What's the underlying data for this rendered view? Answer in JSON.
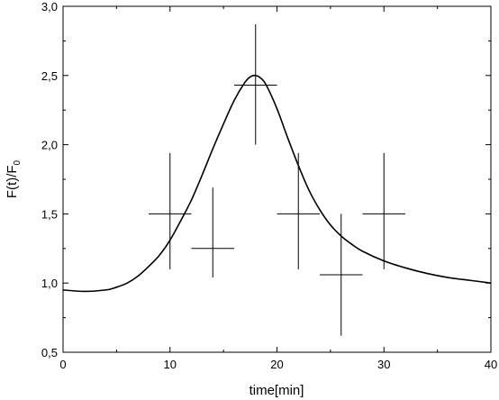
{
  "chart_data": {
    "type": "scatter",
    "xlabel": "time[min]",
    "ylabel_main": "F(t)/F",
    "ylabel_sub": "0",
    "xlim": [
      0,
      40
    ],
    "ylim": [
      0.5,
      3.0
    ],
    "x_ticks": [
      0,
      10,
      20,
      30,
      40
    ],
    "x_tick_labels": [
      "0",
      "10",
      "20",
      "30",
      "40"
    ],
    "y_ticks": [
      0.5,
      1.0,
      1.5,
      2.0,
      2.5,
      3.0
    ],
    "y_tick_labels": [
      "0,5",
      "1,0",
      "1,5",
      "2,0",
      "2,5",
      "3,0"
    ],
    "grid": false,
    "series": [
      {
        "kind": "errorbar",
        "points": [
          {
            "x": 10,
            "y": 1.5,
            "xerr": 2,
            "yerr": [
              0.4,
              0.44
            ]
          },
          {
            "x": 14,
            "y": 1.25,
            "xerr": 2,
            "yerr": [
              0.21,
              0.44
            ]
          },
          {
            "x": 18,
            "y": 2.43,
            "xerr": 2,
            "yerr": [
              0.43,
              0.44
            ]
          },
          {
            "x": 22,
            "y": 1.5,
            "xerr": 2,
            "yerr": [
              0.4,
              0.44
            ]
          },
          {
            "x": 26,
            "y": 1.06,
            "xerr": 2,
            "yerr": [
              0.44,
              0.44
            ]
          },
          {
            "x": 30,
            "y": 1.5,
            "xerr": 2,
            "yerr": [
              0.4,
              0.44
            ]
          }
        ]
      },
      {
        "kind": "line",
        "x": [
          0,
          2,
          4,
          5,
          6,
          7,
          8,
          9,
          10,
          11,
          12,
          13,
          14,
          15,
          16,
          17,
          17.5,
          18,
          18.5,
          19,
          20,
          21,
          22,
          23,
          24,
          25,
          26,
          27,
          28,
          30,
          32,
          34,
          36,
          38,
          40
        ],
        "y": [
          0.95,
          0.94,
          0.95,
          0.97,
          1.0,
          1.05,
          1.12,
          1.2,
          1.31,
          1.45,
          1.6,
          1.78,
          1.97,
          2.15,
          2.32,
          2.45,
          2.49,
          2.5,
          2.48,
          2.43,
          2.26,
          2.05,
          1.85,
          1.67,
          1.53,
          1.42,
          1.34,
          1.28,
          1.23,
          1.16,
          1.11,
          1.07,
          1.04,
          1.02,
          1.0
        ]
      }
    ]
  }
}
